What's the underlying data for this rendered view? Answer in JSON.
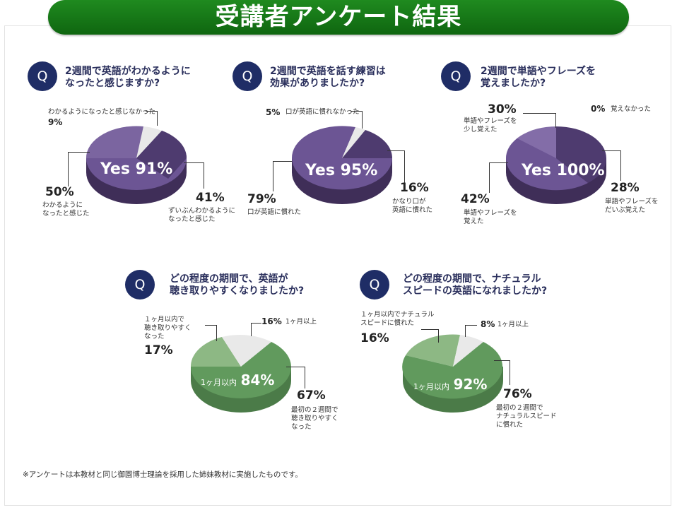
{
  "banner_title": "受講者アンケート結果",
  "q_mark": "Q",
  "colors": {
    "purple": "#6c5594",
    "purple_light": "#836da8",
    "purple_dark": "#4e3b6f",
    "purple_side": "#3f2e58",
    "green": "#619a5d",
    "green_light": "#8db884",
    "green_side": "#4b7b48",
    "gray_slice": "#e9e9e9",
    "banner": "#188018",
    "badge": "#1f2d66"
  },
  "questions": [
    {
      "text_line1": "2週間で英語がわかるように",
      "text_line2": "なったと感じますか?",
      "center_yes": "Yes",
      "center_pct": "91%",
      "slices": [
        {
          "pct": "50%",
          "label_line1": "わかるように",
          "label_line2": "なったと感じた",
          "value": 50
        },
        {
          "pct": "41%",
          "label_line1": "ずいぶんわかるように",
          "label_line2": "なったと感じた",
          "value": 41
        },
        {
          "pct": "9%",
          "label_line1": "わかるようになったと感じなかった",
          "value": 9
        }
      ]
    },
    {
      "text_line1": "2週間で英語を話す練習は",
      "text_line2": "効果がありましたか?",
      "center_yes": "Yes",
      "center_pct": "95%",
      "slices": [
        {
          "pct": "79%",
          "label_line1": "口が英語に慣れた",
          "value": 79
        },
        {
          "pct": "16%",
          "label_line1": "かなり口が",
          "label_line2": "英語に慣れた",
          "value": 16
        },
        {
          "pct": "5%",
          "label_line1": "口が英語に慣れなかった",
          "value": 5
        }
      ]
    },
    {
      "text_line1": "2週間で単語やフレーズを",
      "text_line2": "覚えましたか?",
      "center_yes": "Yes",
      "center_pct": "100%",
      "slices": [
        {
          "pct": "30%",
          "label_line1": "単語やフレーズを",
          "label_line2": "少し覚えた",
          "value": 30
        },
        {
          "pct": "28%",
          "label_line1": "単語やフレーズを",
          "label_line2": "だいぶ覚えた",
          "value": 28
        },
        {
          "pct": "42%",
          "label_line1": "単語やフレーズを",
          "label_line2": "覚えた",
          "value": 42
        },
        {
          "pct": "0%",
          "label_line1": "覚えなかった",
          "value": 0
        }
      ]
    },
    {
      "text_line1": "どの程度の期間で、英語が",
      "text_line2": "聴き取りやすくなりましたか?",
      "center_prefix": "1ヶ月以内",
      "center_pct": "84%",
      "slices": [
        {
          "pct": "67%",
          "label_line1": "最初の２週間で",
          "label_line2": "聴き取りやすく",
          "label_line3": "なった",
          "value": 67
        },
        {
          "pct": "17%",
          "label_line1": "１ヶ月以内で",
          "label_line2": "聴き取りやすく",
          "label_line3": "なった",
          "value": 17
        },
        {
          "pct": "16%",
          "label_line1": "1ヶ月以上",
          "value": 16
        }
      ]
    },
    {
      "text_line1": "どの程度の期間で、ナチュラル",
      "text_line2": "スピードの英語になれましたか?",
      "center_prefix": "1ヶ月以内",
      "center_pct": "92%",
      "slices": [
        {
          "pct": "76%",
          "label_line1": "最初の２週間で",
          "label_line2": "ナチュラルスピード",
          "label_line3": "に慣れた",
          "value": 76
        },
        {
          "pct": "16%",
          "label_line1": "１ヶ月以内でナチュラル",
          "label_line2": "スピードに慣れた",
          "value": 16
        },
        {
          "pct": "8%",
          "label_line1": "1ヶ月以上",
          "value": 8
        }
      ]
    }
  ],
  "footnote": "※アンケートは本教材と同じ御園博士理論を採用した姉妹教材に実施したものです。"
}
